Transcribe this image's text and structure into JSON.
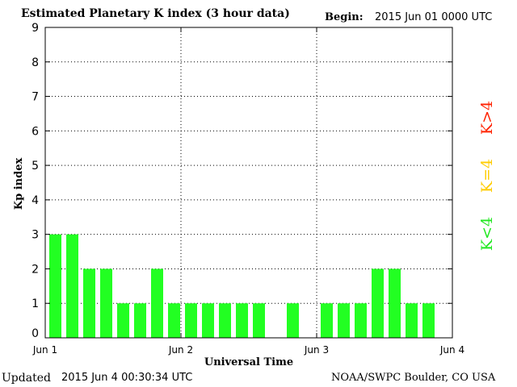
{
  "header": {
    "title": "Estimated Planetary K index (3 hour data)",
    "begin_label": "Begin:",
    "begin_value": "2015 Jun 01 0000 UTC"
  },
  "footer": {
    "updated_label": "Updated",
    "updated_value": "2015 Jun  4 00:30:34 UTC",
    "source": "NOAA/SWPC Boulder, CO USA"
  },
  "legend": [
    {
      "label": "K<4",
      "color": "#22e822"
    },
    {
      "label": "K=4",
      "color": "#ffcc00"
    },
    {
      "label": "K>4",
      "color": "#ff2200"
    }
  ],
  "chart_data": {
    "type": "bar",
    "title": "Estimated Planetary K index (3 hour data)",
    "xlabel": "Universal Time",
    "ylabel": "Kp index",
    "ylim": [
      0,
      9
    ],
    "y_ticks": [
      0,
      1,
      2,
      3,
      4,
      5,
      6,
      7,
      8,
      9
    ],
    "x_tick_labels": [
      "Jun 1",
      "Jun 2",
      "Jun 3",
      "Jun 4"
    ],
    "interval_hours": 3,
    "values": [
      3,
      3,
      2,
      2,
      1,
      1,
      2,
      1,
      1,
      1,
      1,
      1,
      1,
      null,
      1,
      null,
      1,
      1,
      1,
      2,
      2,
      1,
      1,
      null
    ],
    "bar_color": "#22ff22",
    "grid": "dotted"
  }
}
